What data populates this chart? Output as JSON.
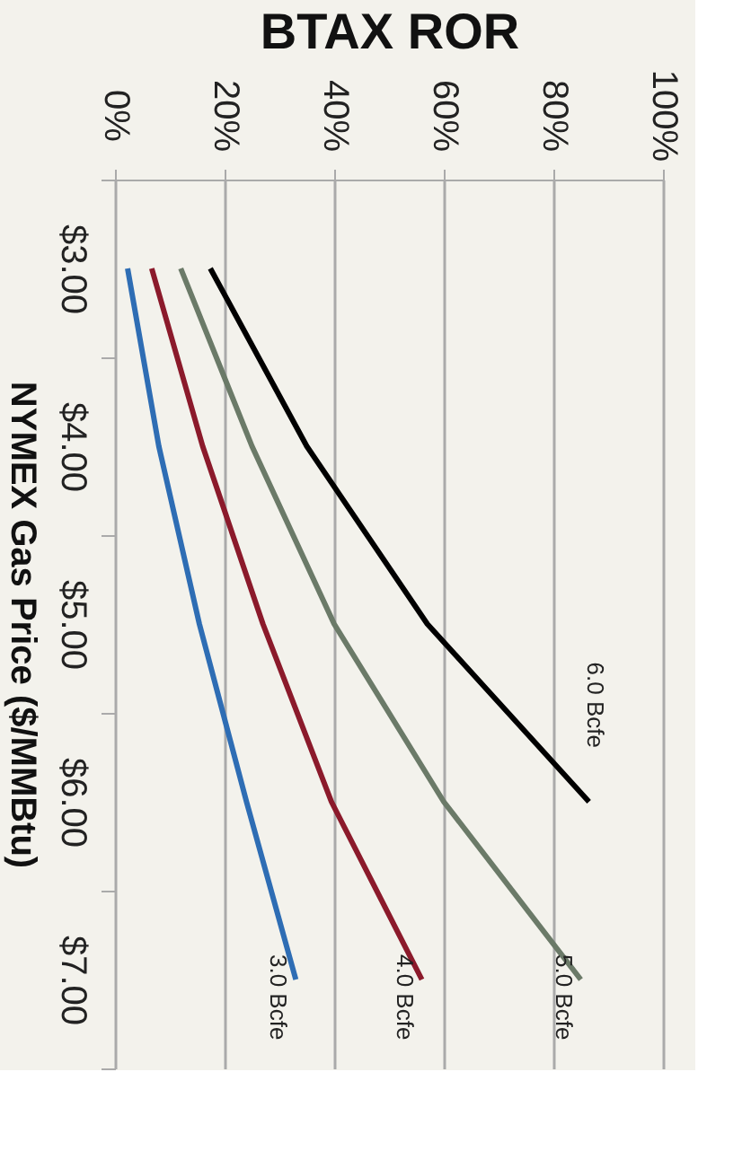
{
  "chart_data": {
    "type": "line",
    "orientation": "horizontal",
    "ylabel": "NYMEX Gas Price ($/MMBtu)",
    "xlabel": "BTAX ROR",
    "categories": [
      "$3.00",
      "$4.00",
      "$5.00",
      "$6.00",
      "$7.00"
    ],
    "series": [
      {
        "name": "3.0 Bcfe",
        "color": "#2e6db4",
        "values": [
          2.3,
          8,
          15.4,
          24,
          33
        ]
      },
      {
        "name": "4.0 Bcfe",
        "color": "#8b1a2b",
        "values": [
          6.7,
          16,
          27,
          39.5,
          56
        ]
      },
      {
        "name": "5.0 Bcfe",
        "color": "#6b7a68",
        "values": [
          12,
          25,
          40,
          60,
          85
        ]
      },
      {
        "name": "6.0 Bcfe",
        "color": "#000000",
        "values": [
          17.4,
          35,
          57,
          86.5,
          null
        ]
      }
    ],
    "xlim": [
      0,
      100
    ],
    "xticks": [
      {
        "value": 0,
        "label": "0%"
      },
      {
        "value": 20,
        "label": "20%"
      },
      {
        "value": 40,
        "label": "40%"
      },
      {
        "value": 60,
        "label": "60%"
      },
      {
        "value": 80,
        "label": "80%"
      },
      {
        "value": 100,
        "label": "100%"
      }
    ],
    "grid": "x",
    "legend": false,
    "marker": "none",
    "line_style": "solid"
  }
}
